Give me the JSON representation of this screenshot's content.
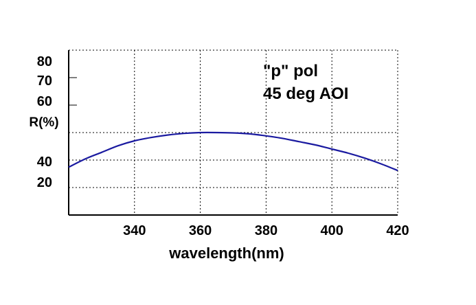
{
  "chart_data": {
    "type": "line",
    "xlabel": "wavelength(nm)",
    "ylabel": "R(%)",
    "xlim": [
      320,
      420
    ],
    "x_ticks": [
      340,
      360,
      380,
      400,
      420
    ],
    "y_tick_labels": [
      "80",
      "70",
      "60",
      "40",
      "20"
    ],
    "grid": true,
    "annotations": [
      "\"p\" pol",
      "45 deg AOI"
    ],
    "series": [
      {
        "color": "#1a1aa0",
        "x": [
          320,
          325,
          330,
          335,
          340,
          345,
          350,
          355,
          360,
          365,
          370,
          375,
          380,
          385,
          390,
          395,
          400,
          405,
          410,
          415,
          420
        ],
        "y": [
          29,
          34,
          38,
          42,
          45,
          47,
          48.5,
          49.5,
          50,
          50,
          49.8,
          49.2,
          48,
          46.5,
          44.5,
          42.5,
          40,
          37.5,
          34.5,
          31,
          27
        ]
      }
    ]
  }
}
